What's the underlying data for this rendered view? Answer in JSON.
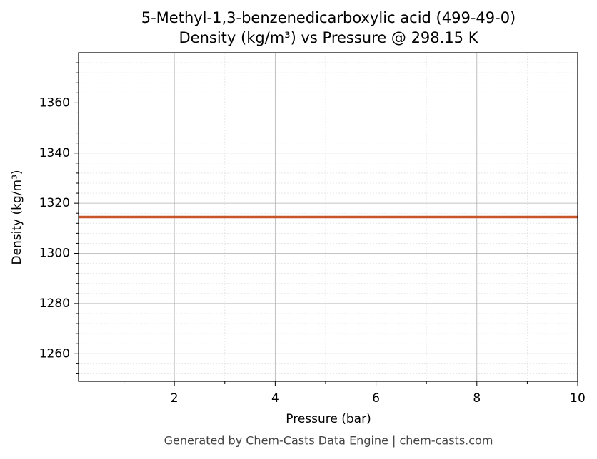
{
  "chart_data": {
    "type": "line",
    "title": "5-Methyl-1,3-benzenedicarboxylic acid (499-49-0)",
    "subtitle": "Density (kg/m³) vs Pressure @ 298.15 K",
    "x_label": "Pressure (bar)",
    "y_label": "Density (kg/m³)",
    "footer": "Generated by Chem-Casts Data Engine | chem-casts.com",
    "x": [
      0.1,
      10
    ],
    "series": [
      {
        "name": "Density",
        "color": "#c8542a",
        "values": [
          1314.5,
          1314.5
        ]
      }
    ],
    "xlim": [
      0.1,
      10
    ],
    "xticks": [
      2,
      4,
      6,
      8,
      10
    ],
    "xminorticks": [
      1,
      3,
      5,
      7,
      9
    ],
    "ylim": [
      1249,
      1380
    ],
    "yticks": [
      1260,
      1280,
      1300,
      1320,
      1340,
      1360
    ],
    "yminorticks": [
      1252,
      1256,
      1264,
      1268,
      1272,
      1276,
      1284,
      1288,
      1292,
      1296,
      1304,
      1308,
      1312,
      1316,
      1324,
      1328,
      1332,
      1336,
      1344,
      1348,
      1352,
      1356,
      1364,
      1368,
      1372,
      1376
    ],
    "grid": true
  }
}
